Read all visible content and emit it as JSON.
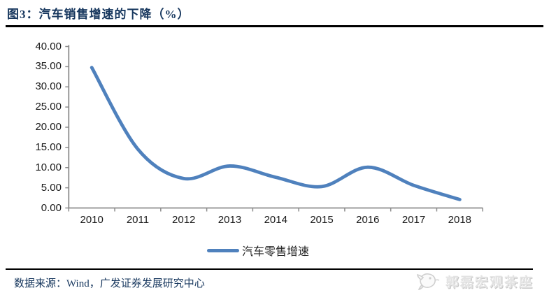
{
  "header": {
    "title": "图3：汽车销售增速的下降（%）"
  },
  "chart_data": {
    "type": "line",
    "title": "图3：汽车销售增速的下降（%）",
    "categories": [
      "2010",
      "2011",
      "2012",
      "2013",
      "2014",
      "2015",
      "2016",
      "2017",
      "2018"
    ],
    "series": [
      {
        "name": "汽车零售增速",
        "values": [
          34.8,
          14.6,
          7.3,
          10.4,
          7.6,
          5.3,
          10.1,
          5.6,
          2.1
        ],
        "color": "#4F81BD"
      }
    ],
    "xlabel": "",
    "ylabel": "",
    "ylim": [
      0,
      40
    ],
    "ytick_step": 5,
    "ytick_labels": [
      "0.00",
      "5.00",
      "10.00",
      "15.00",
      "20.00",
      "25.00",
      "30.00",
      "35.00",
      "40.00"
    ],
    "grid": false,
    "smooth": true,
    "legend_position": "bottom"
  },
  "footer": {
    "source": "数据来源：Wind，广发证券发展研究中心",
    "watermark": "郭磊宏观茶座",
    "watermark_icon": "fish-logo"
  },
  "colors": {
    "title": "#17375E",
    "line": "#4F81BD",
    "axis": "#8C8C8C",
    "tick_text": "#1a1a1a",
    "watermark": "#e3e3e3",
    "rule": "#000000"
  }
}
